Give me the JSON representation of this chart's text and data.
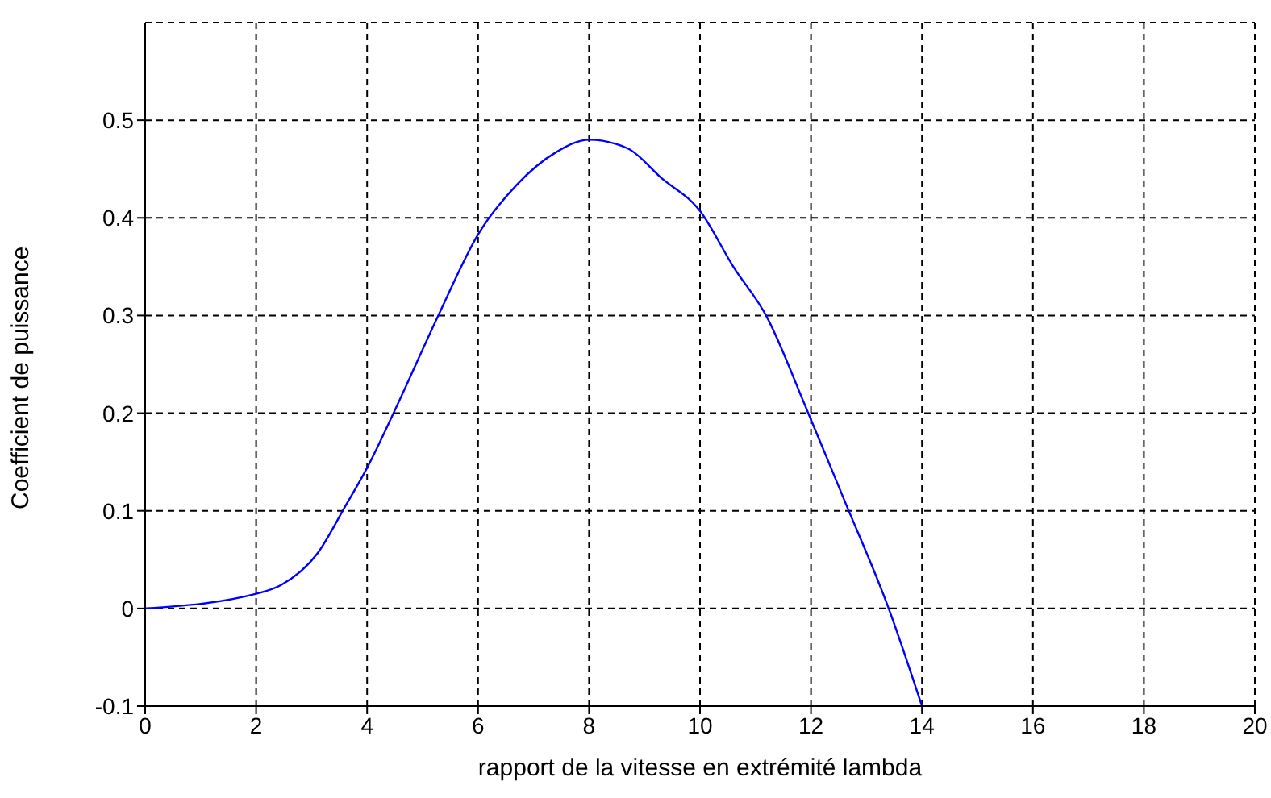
{
  "chart_data": {
    "type": "line",
    "xlabel": "rapport de la vitesse en extrémité lambda",
    "ylabel": "Coefficient de puissance",
    "x": [
      0,
      2,
      2.45,
      3.1,
      3.6,
      4,
      4.5,
      5.3,
      6,
      6.7,
      7.4,
      8,
      8.7,
      9.3,
      10,
      10.6,
      11.2,
      11.9,
      12.6,
      13.4,
      14
    ],
    "series": [
      {
        "color": "#0000ff",
        "values": [
          0,
          0.015,
          0.024,
          0.056,
          0.104,
          0.144,
          0.203,
          0.302,
          0.383,
          0.434,
          0.467,
          0.48,
          0.471,
          0.441,
          0.407,
          0.35,
          0.299,
          0.207,
          0.111,
          0,
          -0.1
        ]
      }
    ],
    "xlim": [
      0,
      20
    ],
    "xticks": [
      0,
      2,
      4,
      6,
      8,
      10,
      12,
      14,
      16,
      18,
      20
    ],
    "ylim": [
      -0.1,
      0.6
    ],
    "yticks": [
      -0.1,
      0,
      0.1,
      0.2,
      0.3,
      0.4,
      0.5
    ],
    "grid": true,
    "marker": "none",
    "line_style": "solid"
  }
}
